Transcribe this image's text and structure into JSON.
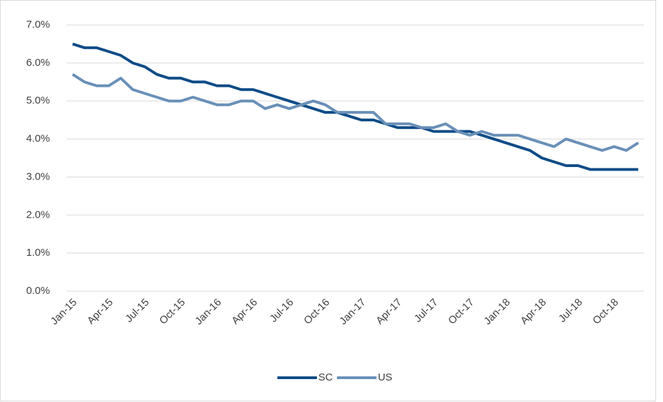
{
  "chart_data": {
    "type": "line",
    "categories": [
      "Jan-15",
      null,
      null,
      "Apr-15",
      null,
      null,
      "Jul-15",
      null,
      null,
      "Oct-15",
      null,
      null,
      "Jan-16",
      null,
      null,
      "Apr-16",
      null,
      null,
      "Jul-16",
      null,
      null,
      "Oct-16",
      null,
      null,
      "Jan-17",
      null,
      null,
      "Apr-17",
      null,
      null,
      "Jul-17",
      null,
      null,
      "Oct-17",
      null,
      null,
      "Jan-18",
      null,
      null,
      "Apr-18",
      null,
      null,
      "Jul-18",
      null,
      null,
      "Oct-18",
      null,
      null
    ],
    "series": [
      {
        "name": "SC",
        "color": "#0e4c87",
        "values": [
          6.5,
          6.4,
          6.4,
          6.3,
          6.2,
          6.0,
          5.9,
          5.7,
          5.6,
          5.6,
          5.5,
          5.5,
          5.4,
          5.4,
          5.3,
          5.3,
          5.2,
          5.1,
          5.0,
          4.9,
          4.8,
          4.7,
          4.7,
          4.6,
          4.5,
          4.5,
          4.4,
          4.3,
          4.3,
          4.3,
          4.2,
          4.2,
          4.2,
          4.2,
          4.1,
          4.0,
          3.9,
          3.8,
          3.7,
          3.5,
          3.4,
          3.3,
          3.3,
          3.2,
          3.2,
          3.2,
          3.2,
          3.2
        ]
      },
      {
        "name": "US",
        "color": "#6990b8",
        "values": [
          5.7,
          5.5,
          5.4,
          5.4,
          5.6,
          5.3,
          5.2,
          5.1,
          5.0,
          5.0,
          5.1,
          5.0,
          4.9,
          4.9,
          5.0,
          5.0,
          4.8,
          4.9,
          4.8,
          4.9,
          5.0,
          4.9,
          4.7,
          4.7,
          4.7,
          4.7,
          4.4,
          4.4,
          4.4,
          4.3,
          4.3,
          4.4,
          4.2,
          4.1,
          4.2,
          4.1,
          4.1,
          4.1,
          4.0,
          3.9,
          3.8,
          4.0,
          3.9,
          3.8,
          3.7,
          3.8,
          3.7,
          3.9
        ]
      }
    ],
    "ylim": [
      0,
      7
    ],
    "yticks": [
      {
        "value": 0,
        "label": "0.0%"
      },
      {
        "value": 1,
        "label": "1.0%"
      },
      {
        "value": 2,
        "label": "2.0%"
      },
      {
        "value": 3,
        "label": "3.0%"
      },
      {
        "value": 4,
        "label": "4.0%"
      },
      {
        "value": 5,
        "label": "5.0%"
      },
      {
        "value": 6,
        "label": "6.0%"
      },
      {
        "value": 7,
        "label": "7.0%"
      }
    ],
    "grid": true,
    "legend": "bottom"
  }
}
